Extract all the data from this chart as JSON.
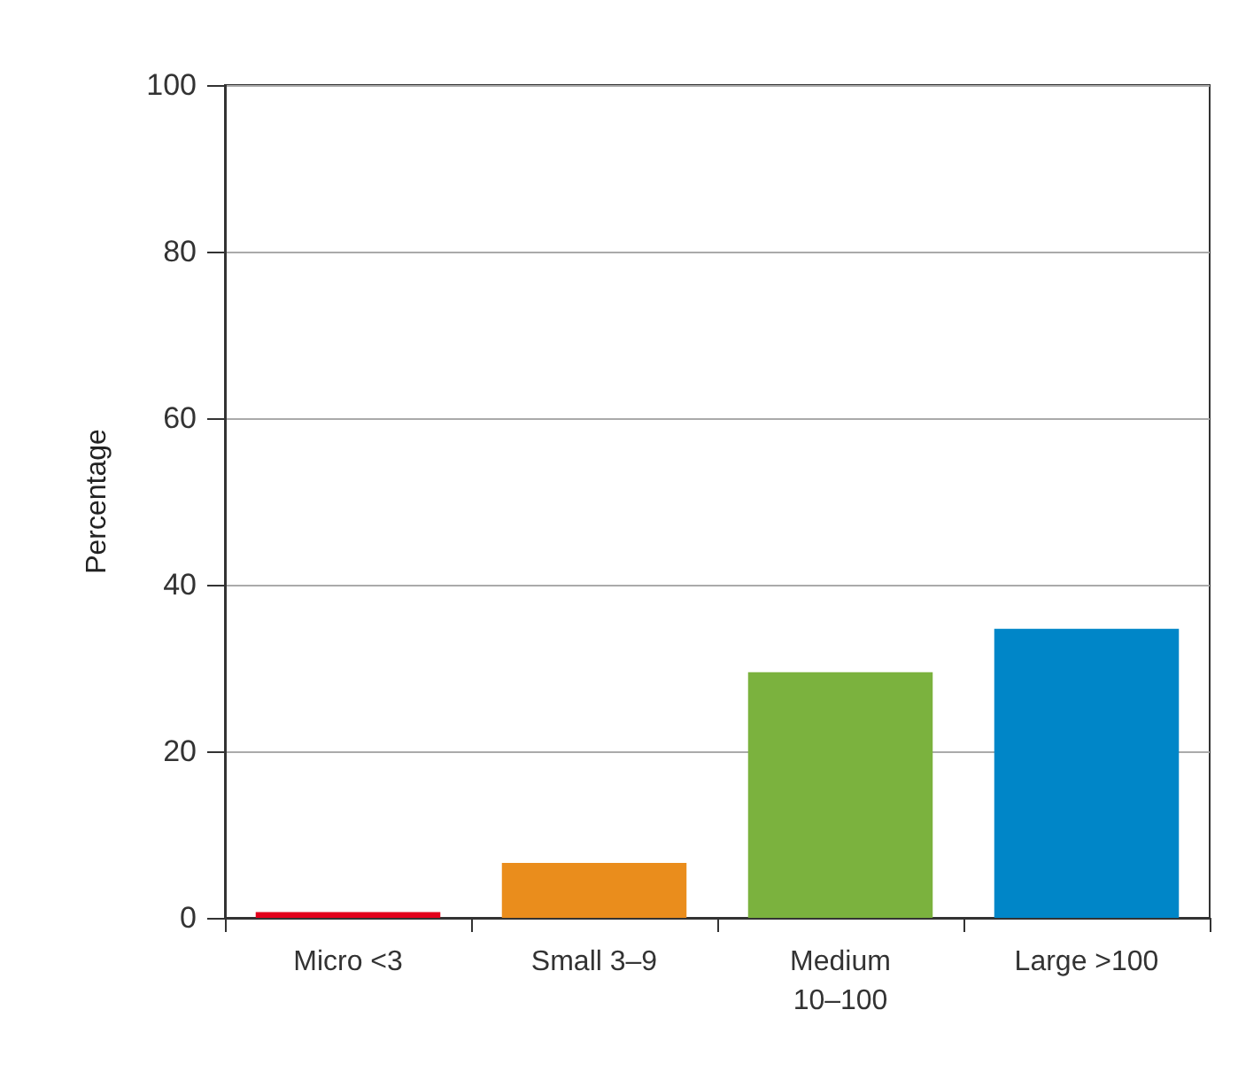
{
  "chart_data": {
    "type": "bar",
    "ylabel": "Percentage",
    "categories": [
      "Micro <3",
      "Small 3–9",
      "Medium\n10–100",
      "Large >100"
    ],
    "values": [
      0.7,
      6.6,
      29.5,
      34.7
    ],
    "colors": [
      "#e3001b",
      "#ea8d1c",
      "#7bb23e",
      "#0086c8"
    ],
    "ylim": [
      0,
      100
    ],
    "yticks": [
      0,
      20,
      40,
      60,
      80,
      100
    ],
    "grid": "y"
  }
}
